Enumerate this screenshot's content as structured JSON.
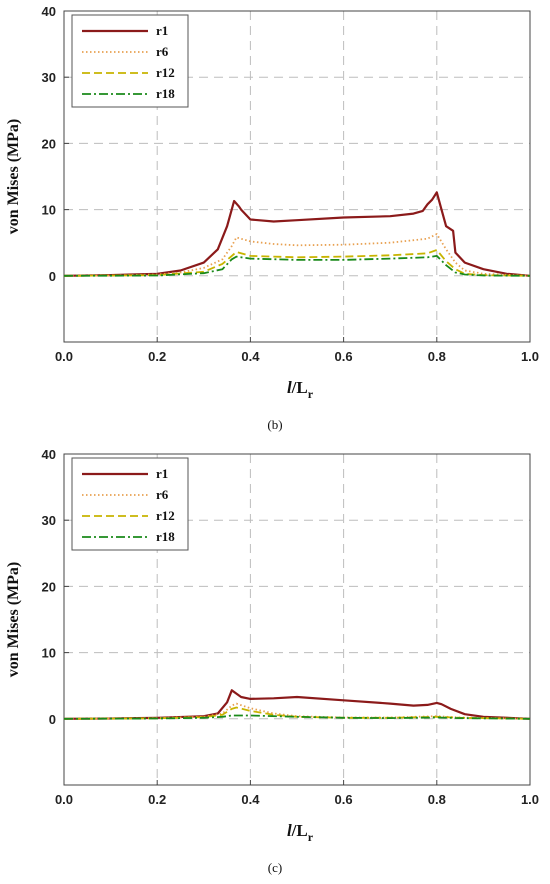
{
  "chart_data": [
    {
      "type": "line",
      "caption": "(b)",
      "ylabel": "von Mises (MPa)",
      "xlabel_italic": "l",
      "xlabel_main": "/L",
      "xlabel_sub": "r",
      "xlim": [
        0.0,
        1.0
      ],
      "ylim": [
        -10,
        40
      ],
      "xticks": [
        "0.0",
        "0.2",
        "0.4",
        "0.6",
        "0.8",
        "1.0"
      ],
      "yticks": [
        "0",
        "10",
        "20",
        "30",
        "40"
      ],
      "legend_position": "top-left",
      "grid": true,
      "series": [
        {
          "name": "r1",
          "color": "#8b1a1a",
          "dash": "solid",
          "x": [
            0,
            0.1,
            0.2,
            0.25,
            0.3,
            0.33,
            0.35,
            0.365,
            0.375,
            0.38,
            0.4,
            0.45,
            0.5,
            0.6,
            0.7,
            0.75,
            0.77,
            0.78,
            0.79,
            0.8,
            0.81,
            0.82,
            0.835,
            0.84,
            0.86,
            0.9,
            0.95,
            1.0
          ],
          "y": [
            0,
            0.1,
            0.3,
            0.8,
            2.0,
            4.0,
            7.5,
            11.3,
            10.5,
            10.0,
            8.5,
            8.2,
            8.4,
            8.8,
            9.0,
            9.4,
            9.8,
            10.8,
            11.5,
            12.6,
            10.0,
            7.5,
            6.8,
            3.5,
            2.0,
            1.0,
            0.3,
            0.0
          ]
        },
        {
          "name": "r6",
          "color": "#e8a050",
          "dash": "dotted",
          "x": [
            0,
            0.1,
            0.2,
            0.25,
            0.3,
            0.34,
            0.36,
            0.37,
            0.4,
            0.45,
            0.5,
            0.6,
            0.7,
            0.78,
            0.8,
            0.82,
            0.84,
            0.86,
            0.9,
            1.0
          ],
          "y": [
            0,
            0.05,
            0.2,
            0.5,
            1.2,
            2.5,
            4.5,
            5.8,
            5.2,
            4.8,
            4.6,
            4.7,
            5.0,
            5.6,
            6.3,
            4.0,
            2.0,
            0.8,
            0.3,
            0.0
          ]
        },
        {
          "name": "r12",
          "color": "#c8b400",
          "dash": "dashed",
          "x": [
            0,
            0.1,
            0.2,
            0.3,
            0.34,
            0.36,
            0.37,
            0.4,
            0.5,
            0.6,
            0.7,
            0.78,
            0.8,
            0.82,
            0.84,
            0.86,
            0.9,
            1.0
          ],
          "y": [
            0,
            0.05,
            0.1,
            0.6,
            1.8,
            3.0,
            3.6,
            3.0,
            2.8,
            2.9,
            3.1,
            3.4,
            3.9,
            2.2,
            1.0,
            0.3,
            0.1,
            0.0
          ]
        },
        {
          "name": "r18",
          "color": "#1a8a1a",
          "dash": "dashdot",
          "x": [
            0,
            0.1,
            0.2,
            0.3,
            0.34,
            0.36,
            0.37,
            0.4,
            0.5,
            0.6,
            0.7,
            0.78,
            0.8,
            0.82,
            0.84,
            0.86,
            0.9,
            1.0
          ],
          "y": [
            0,
            0.02,
            0.05,
            0.4,
            1.0,
            2.5,
            2.9,
            2.6,
            2.4,
            2.4,
            2.6,
            2.8,
            3.0,
            1.6,
            0.5,
            0.2,
            0.05,
            0.0
          ]
        }
      ]
    },
    {
      "type": "line",
      "caption": "(c)",
      "ylabel": "von Mises (MPa)",
      "xlabel_italic": "l",
      "xlabel_main": "/L",
      "xlabel_sub": "r",
      "xlim": [
        0.0,
        1.0
      ],
      "ylim": [
        -10,
        40
      ],
      "xticks": [
        "0.0",
        "0.2",
        "0.4",
        "0.6",
        "0.8",
        "1.0"
      ],
      "yticks": [
        "0",
        "10",
        "20",
        "30",
        "40"
      ],
      "legend_position": "top-left",
      "grid": true,
      "series": [
        {
          "name": "r1",
          "color": "#8b1a1a",
          "dash": "solid",
          "x": [
            0,
            0.1,
            0.2,
            0.3,
            0.33,
            0.35,
            0.36,
            0.37,
            0.38,
            0.4,
            0.45,
            0.5,
            0.6,
            0.7,
            0.75,
            0.78,
            0.8,
            0.81,
            0.83,
            0.86,
            0.9,
            1.0
          ],
          "y": [
            0,
            0.05,
            0.15,
            0.4,
            0.8,
            2.5,
            4.3,
            3.8,
            3.3,
            3.0,
            3.1,
            3.3,
            2.8,
            2.3,
            2.0,
            2.1,
            2.4,
            2.2,
            1.5,
            0.7,
            0.3,
            0.0
          ]
        },
        {
          "name": "r6",
          "color": "#e8a050",
          "dash": "dotted",
          "x": [
            0,
            0.2,
            0.3,
            0.34,
            0.36,
            0.37,
            0.4,
            0.45,
            0.5,
            0.6,
            0.7,
            0.8,
            0.85,
            1.0
          ],
          "y": [
            0,
            0.1,
            0.3,
            0.8,
            2.0,
            2.3,
            1.6,
            0.8,
            0.4,
            0.2,
            0.2,
            0.4,
            0.2,
            0.0
          ]
        },
        {
          "name": "r12",
          "color": "#c8b400",
          "dash": "dashed",
          "x": [
            0,
            0.2,
            0.3,
            0.34,
            0.36,
            0.37,
            0.4,
            0.45,
            0.5,
            0.6,
            0.7,
            0.8,
            0.85,
            1.0
          ],
          "y": [
            0,
            0.08,
            0.25,
            0.6,
            1.5,
            1.7,
            1.2,
            0.6,
            0.3,
            0.15,
            0.15,
            0.3,
            0.15,
            0.0
          ]
        },
        {
          "name": "r18",
          "color": "#1a8a1a",
          "dash": "dashdot",
          "x": [
            0,
            0.2,
            0.3,
            0.34,
            0.36,
            0.4,
            0.5,
            0.6,
            0.7,
            0.8,
            0.85,
            1.0
          ],
          "y": [
            0,
            0.05,
            0.15,
            0.3,
            0.5,
            0.5,
            0.3,
            0.15,
            0.1,
            0.2,
            0.1,
            0.0
          ]
        }
      ]
    }
  ]
}
